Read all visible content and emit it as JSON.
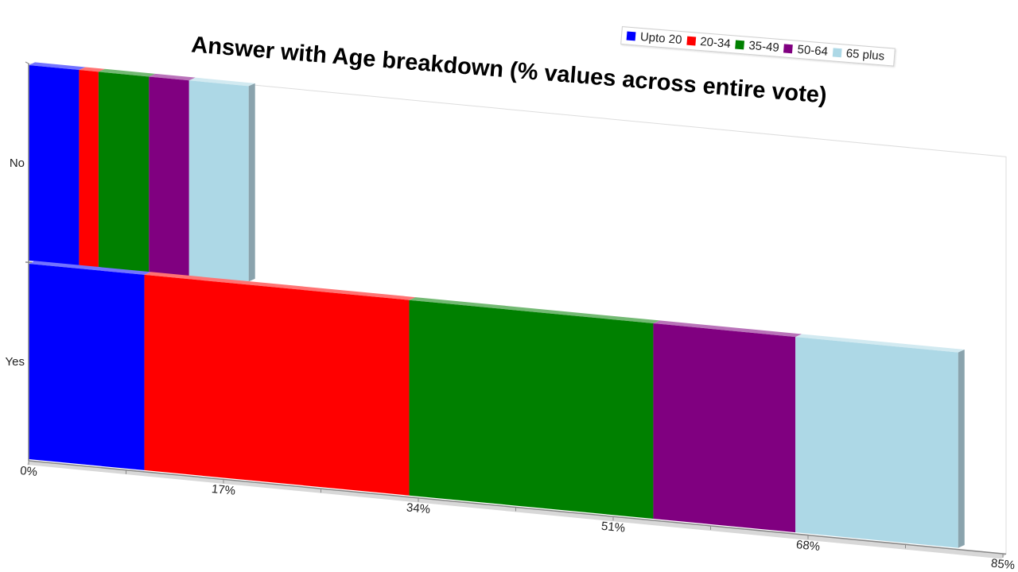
{
  "chart_data": {
    "type": "bar",
    "orientation": "horizontal",
    "stacked": true,
    "title": "Answer with Age breakdown (% values across entire vote)",
    "categories": [
      "No",
      "Yes"
    ],
    "series": [
      {
        "name": "Upto 20",
        "color": "#0000ff",
        "values": [
          4.4,
          10.1
        ]
      },
      {
        "name": "20-34",
        "color": "#ff0000",
        "values": [
          1.7,
          23.1
        ]
      },
      {
        "name": "35-49",
        "color": "#008000",
        "values": [
          4.4,
          21.3
        ]
      },
      {
        "name": "50-64",
        "color": "#800080",
        "values": [
          3.5,
          12.4
        ]
      },
      {
        "name": "65 plus",
        "color": "#add8e6",
        "values": [
          5.2,
          14.2
        ]
      }
    ],
    "x_ticks": [
      "0%",
      "17%",
      "34%",
      "51%",
      "68%",
      "85%"
    ],
    "xlim": [
      0,
      85
    ],
    "legend_position": "top-right",
    "grid": false
  }
}
